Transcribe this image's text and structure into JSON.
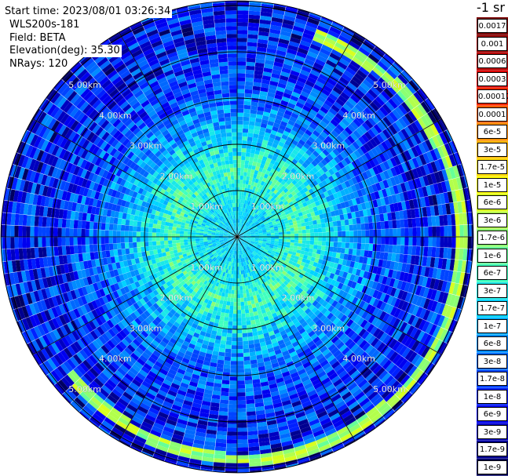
{
  "meta": {
    "start_time": "Start time: 2023/08/01 03:26:34",
    "device": "WLS200s-181",
    "field": "Field: BETA",
    "elevation": "Elevation(deg): 35.30",
    "nrays": "NRays: 120"
  },
  "colorbar": {
    "title": "-1 sr",
    "entries": [
      {
        "label": "0.0017",
        "color": "#7a0000",
        "text_color": "#ffffff"
      },
      {
        "label": "0.001",
        "color": "#9a0000",
        "text_color": "#ffffff"
      },
      {
        "label": "0.0006",
        "color": "#bb0000",
        "text_color": "#ffffff"
      },
      {
        "label": "0.0003",
        "color": "#e00000",
        "text_color": "#ffffff"
      },
      {
        "label": "0.00017",
        "color": "#ff2a00",
        "text_color": "#ffffff"
      },
      {
        "label": "0.0001",
        "color": "#ff6000",
        "text_color": "#ffffff"
      },
      {
        "label": "6e-5",
        "color": "#ff8f00",
        "text_color": "#000000"
      },
      {
        "label": "3e-5",
        "color": "#ffb800",
        "text_color": "#000000"
      },
      {
        "label": "1.7e-5",
        "color": "#ffdd00",
        "text_color": "#000000"
      },
      {
        "label": "1e-5",
        "color": "#ffff00",
        "text_color": "#000000"
      },
      {
        "label": "6e-6",
        "color": "#d8ff20",
        "text_color": "#000000"
      },
      {
        "label": "3e-6",
        "color": "#b2ff4c",
        "text_color": "#000000"
      },
      {
        "label": "1.7e-6",
        "color": "#8cff72",
        "text_color": "#000000"
      },
      {
        "label": "1e-6",
        "color": "#66ff98",
        "text_color": "#000000"
      },
      {
        "label": "6e-7",
        "color": "#40ffbe",
        "text_color": "#000000"
      },
      {
        "label": "3e-7",
        "color": "#1ae8e8",
        "text_color": "#000000"
      },
      {
        "label": "1.7e-7",
        "color": "#00d4ff",
        "text_color": "#000000"
      },
      {
        "label": "1e-7",
        "color": "#00b0ff",
        "text_color": "#000000"
      },
      {
        "label": "6e-8",
        "color": "#008cff",
        "text_color": "#000000"
      },
      {
        "label": "3e-8",
        "color": "#0068ff",
        "text_color": "#000000"
      },
      {
        "label": "1.7e-8",
        "color": "#0044ff",
        "text_color": "#ffffff"
      },
      {
        "label": "1e-8",
        "color": "#0020ff",
        "text_color": "#ffffff"
      },
      {
        "label": "6e-9",
        "color": "#0000f0",
        "text_color": "#ffffff"
      },
      {
        "label": "3e-9",
        "color": "#0000c0",
        "text_color": "#ffffff"
      },
      {
        "label": "1.7e-9",
        "color": "#000090",
        "text_color": "#ffffff"
      },
      {
        "label": "1e-9",
        "color": "#000060",
        "text_color": "#ffffff"
      }
    ]
  },
  "chart_data": {
    "type": "heatmap",
    "subtype": "polar PPI scan",
    "nrays": 120,
    "range_rings": [
      {
        "range_km": 1.0,
        "label": "1.00km"
      },
      {
        "range_km": 2.0,
        "label": "2.00km"
      },
      {
        "range_km": 3.0,
        "label": "3.00km"
      },
      {
        "range_km": 4.0,
        "label": "4.00km"
      },
      {
        "range_km": 5.0,
        "label": "5.00km"
      }
    ],
    "max_range_km": 5.1,
    "spokes_deg": [
      0,
      30,
      60,
      90,
      120,
      150,
      180,
      210,
      240,
      270,
      300,
      330
    ],
    "value_profile": [
      {
        "range_km": 0.0,
        "log10_beta": -6.8
      },
      {
        "range_km": 0.8,
        "log10_beta": -6.6
      },
      {
        "range_km": 1.3,
        "log10_beta": -6.2
      },
      {
        "range_km": 1.9,
        "log10_beta": -6.6
      },
      {
        "range_km": 2.5,
        "log10_beta": -7.2
      },
      {
        "range_km": 3.2,
        "log10_beta": -7.7
      },
      {
        "range_km": 4.0,
        "log10_beta": -8.0
      },
      {
        "range_km": 5.1,
        "log10_beta": -8.2
      }
    ],
    "enhanced_arc": {
      "azimuth_start_deg": 20,
      "azimuth_end_deg": 230,
      "range_km": 4.6,
      "log10_beta": -5.6
    }
  }
}
